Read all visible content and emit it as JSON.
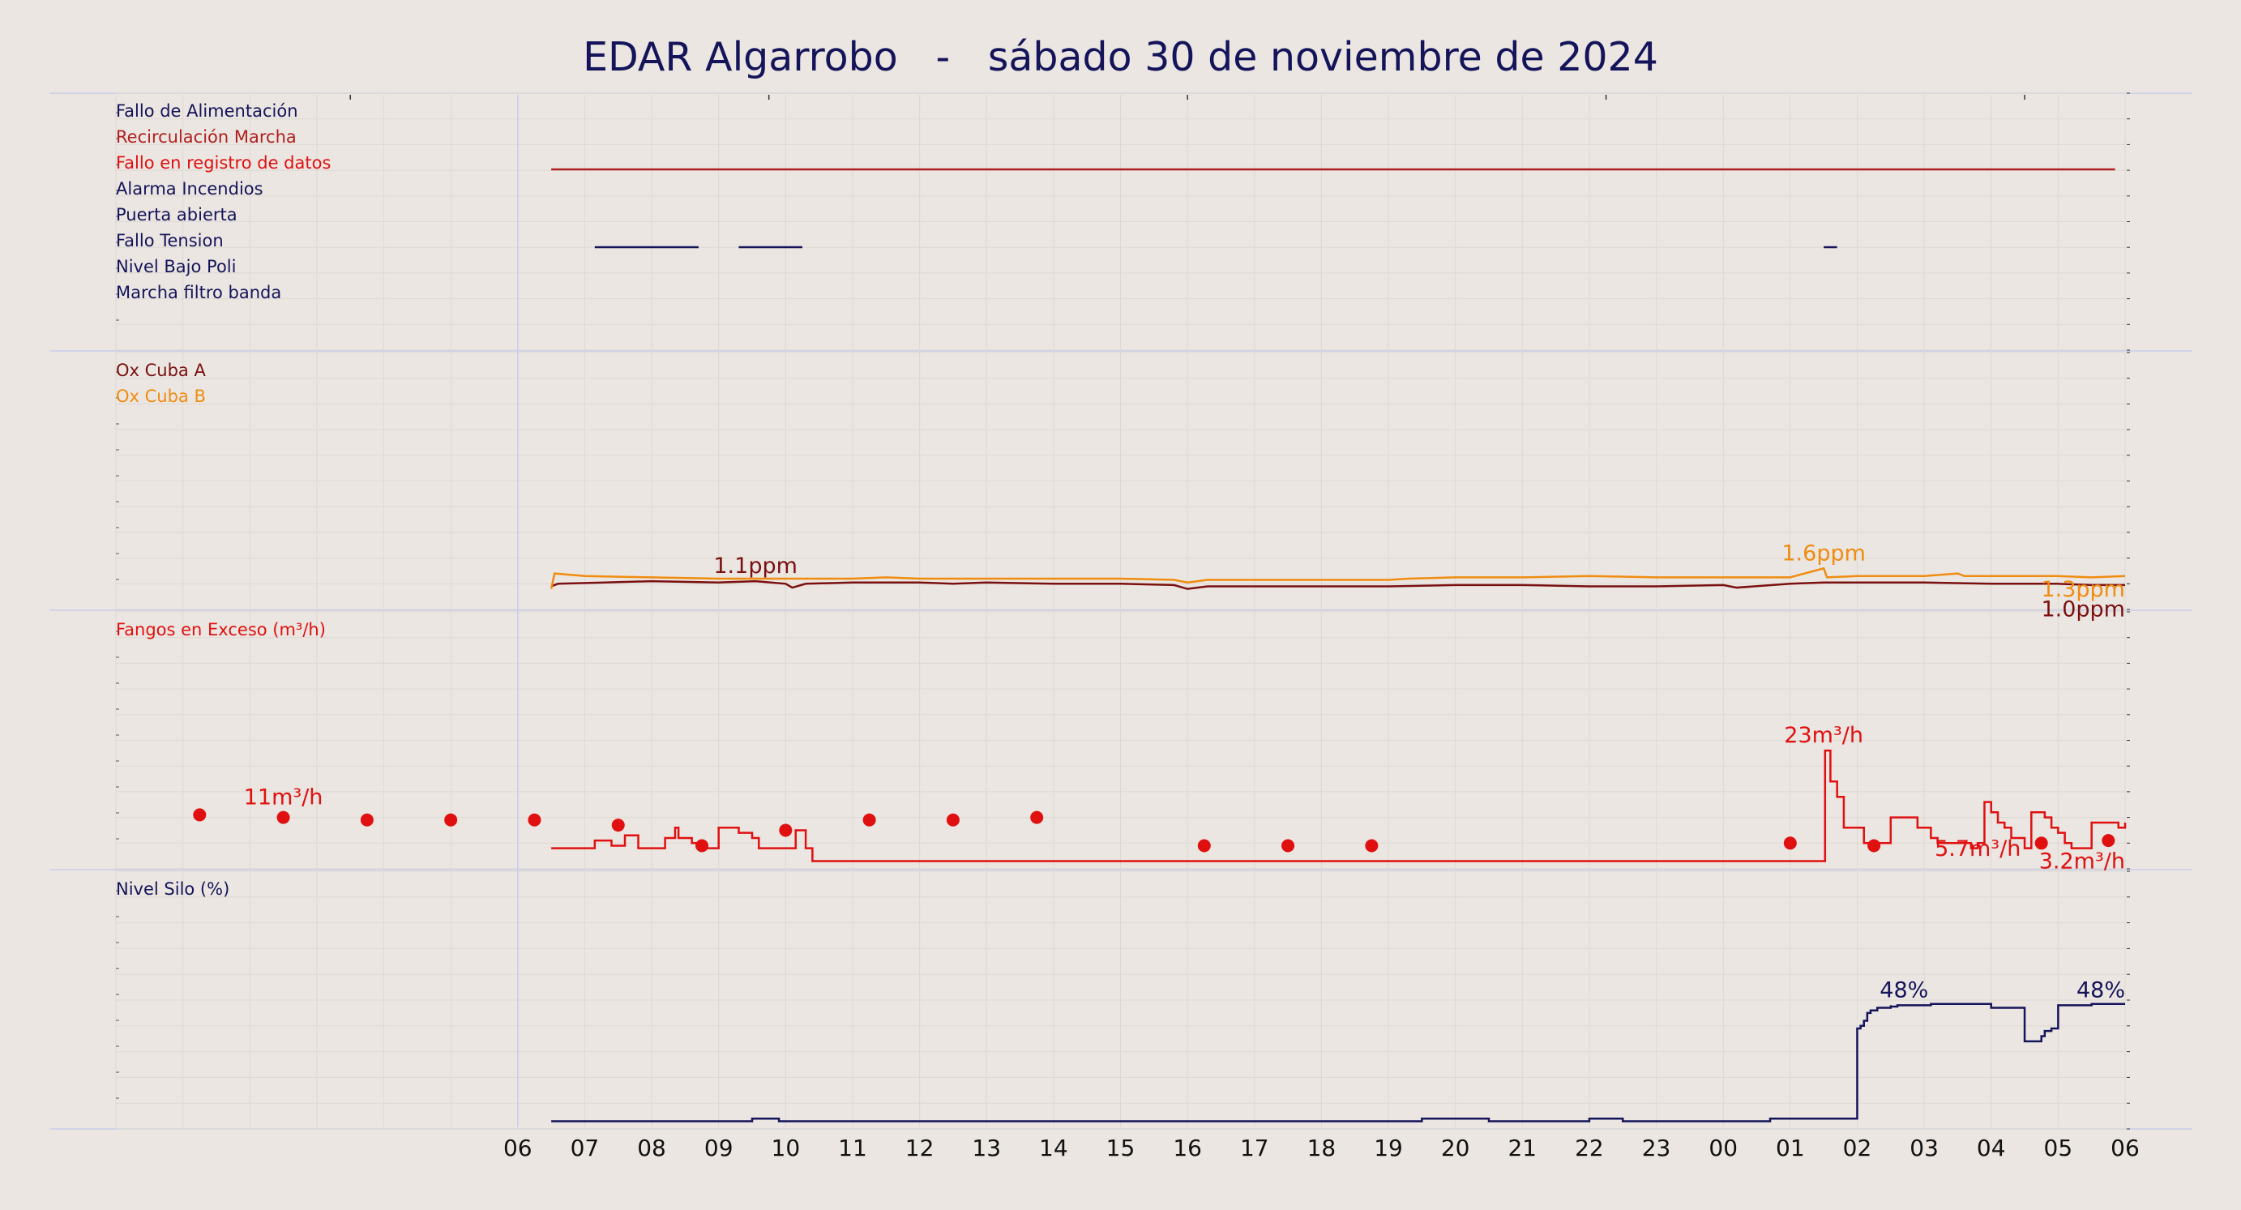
{
  "title": "EDAR Algarrobo   -   sábado 30 de noviembre de 2024",
  "x_ticks": [
    "06",
    "07",
    "08",
    "09",
    "10",
    "11",
    "12",
    "13",
    "14",
    "15",
    "16",
    "17",
    "18",
    "19",
    "20",
    "21",
    "22",
    "23",
    "00",
    "01",
    "02",
    "03",
    "04",
    "05",
    "06"
  ],
  "colors": {
    "background": "#ebe6e1",
    "navy": "#14145a",
    "darkred": "#7a1010",
    "red": "#e01010",
    "orange": "#f08c10",
    "recirc": "#b02020",
    "panel_border": "#c8cdeb"
  },
  "panels": [
    {
      "id": "alarms",
      "labels": [
        {
          "text": "Fallo de Alimentación",
          "color": "#14145a"
        },
        {
          "text": "Recirculación Marcha",
          "color": "#b02020"
        },
        {
          "text": "Fallo en registro de datos",
          "color": "#e01010"
        },
        {
          "text": "Alarma Incendios",
          "color": "#14145a"
        },
        {
          "text": "Puerta abierta",
          "color": "#14145a"
        },
        {
          "text": "Fallo Tension",
          "color": "#14145a"
        },
        {
          "text": "Nivel Bajo Poli",
          "color": "#14145a"
        },
        {
          "text": "Marcha filtro banda",
          "color": "#14145a"
        }
      ]
    },
    {
      "id": "oxygen",
      "labels": [
        {
          "text": "Ox Cuba A",
          "color": "#7a1010"
        },
        {
          "text": "Ox Cuba B",
          "color": "#f08c10"
        }
      ],
      "annotations": [
        {
          "text": "1.1ppm",
          "color": "#7a1010",
          "hour": 9.55,
          "value": 1.1
        },
        {
          "text": "1.6ppm",
          "color": "#f08c10",
          "hour": 25.5,
          "value": 1.6
        },
        {
          "text": "1.3ppm",
          "color": "#f08c10",
          "hour": 29.4,
          "value": 1.3
        },
        {
          "text": "1.0ppm",
          "color": "#7a1010",
          "hour": 29.4,
          "value": 1.0
        }
      ]
    },
    {
      "id": "sludge",
      "labels": [
        {
          "text": "Fangos en Exceso (m³/h)",
          "color": "#e01010"
        }
      ],
      "annotations": [
        {
          "text": "11m³/h",
          "color": "#e01010",
          "hour": 2.5,
          "value": 11
        },
        {
          "text": "23m³/h",
          "color": "#e01010",
          "hour": 25.5,
          "value": 23
        },
        {
          "text": "5.7m³/h",
          "color": "#e01010",
          "hour": 27.8,
          "value": 5.7
        },
        {
          "text": "3.2m³/h",
          "color": "#e01010",
          "hour": 29.3,
          "value": 3.2
        }
      ]
    },
    {
      "id": "silo",
      "labels": [
        {
          "text": "Nivel Silo (%)",
          "color": "#14145a"
        }
      ],
      "annotations": [
        {
          "text": "48%",
          "color": "#14145a",
          "hour": 26.7,
          "value": 48
        },
        {
          "text": "48%",
          "color": "#14145a",
          "hour": 29.4,
          "value": 48
        }
      ]
    }
  ],
  "chart_data": {
    "type": "line",
    "x_unit": "hour of day (24+ = next day)",
    "x_range": [
      0,
      30
    ],
    "series": [
      {
        "name": "Recirculación Marcha",
        "panel": "alarms",
        "type": "step",
        "color": "#b02020",
        "segments": [
          [
            6.5,
            29.85
          ]
        ]
      },
      {
        "name": "Puerta abierta",
        "panel": "alarms",
        "type": "step",
        "color": "#14145a",
        "segments": [
          [
            7.15,
            8.7
          ],
          [
            9.3,
            10.25
          ],
          [
            25.5,
            25.7
          ]
        ]
      },
      {
        "name": "Ox Cuba A",
        "panel": "oxygen",
        "color": "#7a1010",
        "ylim": [
          0,
          10
        ],
        "points": [
          [
            6.5,
            0.9
          ],
          [
            6.6,
            1.0
          ],
          [
            7.3,
            1.05
          ],
          [
            8.0,
            1.1
          ],
          [
            9.0,
            1.05
          ],
          [
            9.55,
            1.1
          ],
          [
            10.0,
            1.0
          ],
          [
            10.1,
            0.85
          ],
          [
            10.3,
            1.0
          ],
          [
            11.0,
            1.05
          ],
          [
            12.0,
            1.05
          ],
          [
            12.5,
            1.0
          ],
          [
            13.0,
            1.05
          ],
          [
            14.0,
            1.0
          ],
          [
            15.0,
            1.0
          ],
          [
            15.8,
            0.95
          ],
          [
            16.0,
            0.8
          ],
          [
            16.3,
            0.9
          ],
          [
            17.0,
            0.9
          ],
          [
            18.0,
            0.9
          ],
          [
            19.0,
            0.9
          ],
          [
            20.0,
            0.95
          ],
          [
            21.0,
            0.95
          ],
          [
            22.0,
            0.9
          ],
          [
            23.0,
            0.9
          ],
          [
            24.0,
            0.95
          ],
          [
            24.2,
            0.85
          ],
          [
            25.0,
            1.0
          ],
          [
            25.5,
            1.05
          ],
          [
            26.0,
            1.05
          ],
          [
            27.0,
            1.05
          ],
          [
            28.0,
            1.0
          ],
          [
            29.0,
            1.0
          ],
          [
            29.5,
            0.95
          ],
          [
            30.0,
            0.95
          ]
        ]
      },
      {
        "name": "Ox Cuba B",
        "panel": "oxygen",
        "color": "#f08c10",
        "ylim": [
          0,
          10
        ],
        "points": [
          [
            6.5,
            0.8
          ],
          [
            6.55,
            1.4
          ],
          [
            7.0,
            1.3
          ],
          [
            8.0,
            1.25
          ],
          [
            9.0,
            1.2
          ],
          [
            10.0,
            1.2
          ],
          [
            11.0,
            1.2
          ],
          [
            11.5,
            1.25
          ],
          [
            12.0,
            1.2
          ],
          [
            13.0,
            1.2
          ],
          [
            14.0,
            1.2
          ],
          [
            15.0,
            1.2
          ],
          [
            15.8,
            1.15
          ],
          [
            16.0,
            1.05
          ],
          [
            16.3,
            1.15
          ],
          [
            17.0,
            1.15
          ],
          [
            18.0,
            1.15
          ],
          [
            19.0,
            1.15
          ],
          [
            19.3,
            1.2
          ],
          [
            20.0,
            1.25
          ],
          [
            21.0,
            1.25
          ],
          [
            22.0,
            1.3
          ],
          [
            23.0,
            1.25
          ],
          [
            24.0,
            1.25
          ],
          [
            25.0,
            1.25
          ],
          [
            25.5,
            1.6
          ],
          [
            25.55,
            1.25
          ],
          [
            26.0,
            1.3
          ],
          [
            27.0,
            1.3
          ],
          [
            27.5,
            1.4
          ],
          [
            27.6,
            1.3
          ],
          [
            28.0,
            1.3
          ],
          [
            29.0,
            1.3
          ],
          [
            29.5,
            1.25
          ],
          [
            30.0,
            1.3
          ]
        ]
      },
      {
        "name": "Fangos en Exceso (m³/h)",
        "panel": "sludge",
        "type": "step",
        "color": "#e01010",
        "ylim": [
          0,
          50
        ],
        "points": [
          [
            6.5,
            4
          ],
          [
            7.15,
            5.5
          ],
          [
            7.4,
            4.5
          ],
          [
            7.6,
            6.5
          ],
          [
            7.8,
            4
          ],
          [
            8.1,
            4
          ],
          [
            8.2,
            6
          ],
          [
            8.35,
            8
          ],
          [
            8.4,
            6
          ],
          [
            8.6,
            5
          ],
          [
            8.8,
            4
          ],
          [
            9.0,
            8
          ],
          [
            9.3,
            7
          ],
          [
            9.5,
            6
          ],
          [
            9.6,
            4
          ],
          [
            10.0,
            4
          ],
          [
            10.15,
            7.5
          ],
          [
            10.3,
            4
          ],
          [
            10.4,
            1.5
          ],
          [
            25.5,
            1.5
          ],
          [
            25.52,
            23
          ],
          [
            25.6,
            17
          ],
          [
            25.7,
            14
          ],
          [
            25.8,
            8
          ],
          [
            26.0,
            8
          ],
          [
            26.1,
            5
          ],
          [
            26.5,
            5
          ],
          [
            26.5,
            10
          ],
          [
            26.8,
            10
          ],
          [
            26.9,
            8
          ],
          [
            27.1,
            6
          ],
          [
            27.2,
            5
          ],
          [
            27.7,
            5
          ],
          [
            27.7,
            4
          ],
          [
            27.8,
            5
          ],
          [
            27.9,
            13
          ],
          [
            28.0,
            11
          ],
          [
            28.1,
            9
          ],
          [
            28.2,
            8
          ],
          [
            28.3,
            6
          ],
          [
            28.5,
            5
          ],
          [
            28.5,
            4
          ],
          [
            28.6,
            4
          ],
          [
            28.6,
            11
          ],
          [
            28.8,
            10
          ],
          [
            28.9,
            8
          ],
          [
            29.0,
            7
          ],
          [
            29.1,
            5
          ],
          [
            29.2,
            4
          ],
          [
            29.5,
            4
          ],
          [
            29.5,
            9
          ],
          [
            29.8,
            9
          ],
          [
            29.9,
            8
          ],
          [
            30.0,
            9
          ]
        ]
      },
      {
        "name": "Fangos en Exceso (m³/h) puntos",
        "panel": "sludge",
        "type": "scatter",
        "color": "#e01010",
        "ylim": [
          0,
          50
        ],
        "points": [
          [
            1.25,
            10.5
          ],
          [
            2.5,
            10
          ],
          [
            3.75,
            9.5
          ],
          [
            5.0,
            9.5
          ],
          [
            6.25,
            9.5
          ],
          [
            7.5,
            8.5
          ],
          [
            8.75,
            4.5
          ],
          [
            10.0,
            7.5
          ],
          [
            11.25,
            9.5
          ],
          [
            12.5,
            9.5
          ],
          [
            13.75,
            10
          ],
          [
            16.25,
            4.5
          ],
          [
            17.5,
            4.5
          ],
          [
            18.75,
            4.5
          ],
          [
            25.0,
            5
          ],
          [
            26.25,
            4.5
          ],
          [
            28.75,
            5
          ],
          [
            29.75,
            5.5
          ]
        ]
      },
      {
        "name": "Nivel Silo (%)",
        "panel": "silo",
        "type": "step",
        "color": "#14145a",
        "ylim": [
          0,
          100
        ],
        "points": [
          [
            6.5,
            3
          ],
          [
            9.5,
            3
          ],
          [
            9.5,
            4
          ],
          [
            9.9,
            4
          ],
          [
            9.9,
            3
          ],
          [
            19.5,
            3
          ],
          [
            19.5,
            4
          ],
          [
            20.5,
            4
          ],
          [
            20.5,
            3
          ],
          [
            22.0,
            3
          ],
          [
            22.0,
            4
          ],
          [
            22.5,
            4
          ],
          [
            22.5,
            3
          ],
          [
            24.7,
            3
          ],
          [
            24.7,
            4
          ],
          [
            26.0,
            4
          ],
          [
            26.0,
            39
          ],
          [
            26.05,
            40
          ],
          [
            26.1,
            42
          ],
          [
            26.15,
            45
          ],
          [
            26.2,
            46
          ],
          [
            26.3,
            47
          ],
          [
            26.5,
            48
          ],
          [
            26.5,
            47.5
          ],
          [
            26.6,
            48
          ],
          [
            27.1,
            48
          ],
          [
            27.1,
            48.5
          ],
          [
            28.0,
            48.5
          ],
          [
            28.0,
            47
          ],
          [
            28.5,
            47
          ],
          [
            28.5,
            34
          ],
          [
            28.7,
            34
          ],
          [
            28.75,
            36
          ],
          [
            28.8,
            38
          ],
          [
            28.9,
            39
          ],
          [
            29.0,
            40
          ],
          [
            29.0,
            48
          ],
          [
            29.5,
            48
          ],
          [
            29.5,
            48.5
          ],
          [
            30.0,
            48.5
          ]
        ]
      }
    ]
  }
}
